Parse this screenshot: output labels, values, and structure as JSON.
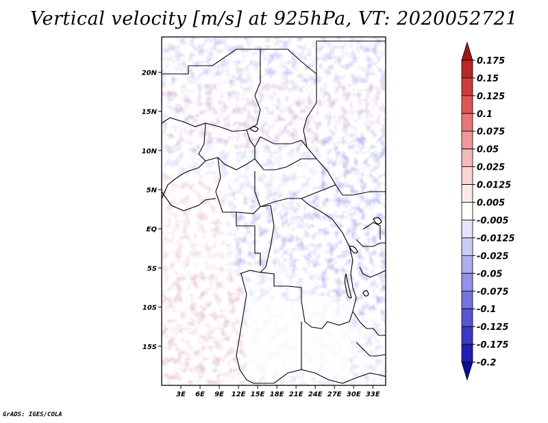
{
  "title": "Vertical velocity [m/s] at 925hPa, VT: 2020052721",
  "footer": "GrADS: IGES/COLA",
  "map": {
    "lon_range": [
      0,
      35
    ],
    "lat_range": [
      -20,
      24.5
    ],
    "lat_ticks": [
      {
        "lat": 20,
        "label": "20N"
      },
      {
        "lat": 15,
        "label": "15N"
      },
      {
        "lat": 10,
        "label": "10N"
      },
      {
        "lat": 5,
        "label": "5N"
      },
      {
        "lat": 0,
        "label": "EQ"
      },
      {
        "lat": -5,
        "label": "5S"
      },
      {
        "lat": -10,
        "label": "10S"
      },
      {
        "lat": -15,
        "label": "15S"
      }
    ],
    "lon_ticks": [
      {
        "lon": 3,
        "label": "3E"
      },
      {
        "lon": 6,
        "label": "6E"
      },
      {
        "lon": 9,
        "label": "9E"
      },
      {
        "lon": 12,
        "label": "12E"
      },
      {
        "lon": 15,
        "label": "15E"
      },
      {
        "lon": 18,
        "label": "18E"
      },
      {
        "lon": 21,
        "label": "21E"
      },
      {
        "lon": 24,
        "label": "24E"
      },
      {
        "lon": 27,
        "label": "27E"
      },
      {
        "lon": 30,
        "label": "30E"
      },
      {
        "lon": 33,
        "label": "33E"
      }
    ]
  },
  "colorbar": {
    "labels": [
      "0.175",
      "0.15",
      "0.125",
      "0.1",
      "0.075",
      "0.05",
      "0.025",
      "0.0125",
      "0.005",
      "-0.005",
      "-0.0125",
      "-0.025",
      "-0.05",
      "-0.075",
      "-0.1",
      "-0.125",
      "-0.175",
      "-0.2"
    ],
    "colors": [
      "#a01818",
      "#b82828",
      "#cc3c3c",
      "#dc5858",
      "#e67878",
      "#ee9898",
      "#f4b8b8",
      "#f8d4d4",
      "#fceaea",
      "#ffffff",
      "#e4e4fa",
      "#cacaf4",
      "#aeaeee",
      "#9292e6",
      "#7474dc",
      "#5656d0",
      "#3a3ac2",
      "#2020b0",
      "#0c0c96"
    ]
  }
}
